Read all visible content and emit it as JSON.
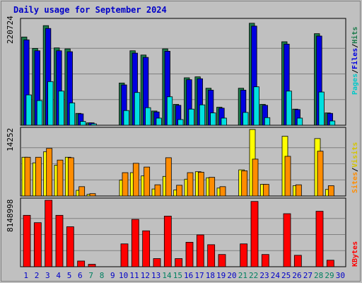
{
  "title": "Daily usage for September 2024",
  "chart_data": [
    {
      "type": "bar",
      "panel": "top",
      "ymax_label": "220724",
      "ylim": [
        0,
        220724
      ],
      "categories": [
        "1",
        "2",
        "3",
        "4",
        "5",
        "6",
        "7",
        "8",
        "9",
        "10",
        "11",
        "12",
        "13",
        "14",
        "15",
        "16",
        "17",
        "18",
        "19",
        "20",
        "21",
        "22",
        "23",
        "24",
        "25",
        "26",
        "27",
        "28",
        "29",
        "30"
      ],
      "series": [
        {
          "name": "Hits",
          "color": "#1a7a4a",
          "values": [
            186000,
            162000,
            210000,
            163000,
            161000,
            25000,
            5000,
            0,
            0,
            89000,
            157000,
            148000,
            30000,
            161000,
            44000,
            100000,
            102000,
            78000,
            38000,
            0,
            78000,
            215000,
            44000,
            0,
            176000,
            34000,
            0,
            193000,
            26000,
            0
          ]
        },
        {
          "name": "Files",
          "color": "#0000e0",
          "values": [
            180000,
            157000,
            204000,
            157000,
            155000,
            24000,
            5000,
            0,
            0,
            85000,
            152000,
            143000,
            28000,
            156000,
            42000,
            96000,
            98000,
            74000,
            36000,
            0,
            74000,
            209000,
            42000,
            0,
            171000,
            33000,
            0,
            188000,
            25000,
            0
          ]
        },
        {
          "name": "Pages",
          "color": "#00e0e0",
          "values": [
            64000,
            52000,
            92000,
            72000,
            47000,
            8000,
            2000,
            0,
            0,
            31000,
            69000,
            37000,
            15000,
            60000,
            12000,
            34000,
            43000,
            26000,
            15000,
            0,
            27000,
            81000,
            16000,
            0,
            72000,
            15000,
            0,
            70000,
            9000,
            0
          ]
        }
      ],
      "right_labels": [
        "Pages",
        "/",
        "Files",
        "/",
        "Hits"
      ]
    },
    {
      "type": "bar",
      "panel": "middle",
      "ymax_label": "14252",
      "ylim": [
        0,
        14252
      ],
      "categories": [
        "1",
        "2",
        "3",
        "4",
        "5",
        "6",
        "7",
        "8",
        "9",
        "10",
        "11",
        "12",
        "13",
        "14",
        "15",
        "16",
        "17",
        "18",
        "19",
        "20",
        "21",
        "22",
        "23",
        "24",
        "25",
        "26",
        "27",
        "28",
        "29",
        "30"
      ],
      "series": [
        {
          "name": "Visits",
          "color": "#ffff00",
          "values": [
            8300,
            7100,
            9500,
            6600,
            8300,
            1200,
            350,
            0,
            0,
            3400,
            5000,
            4300,
            1500,
            4200,
            1300,
            3600,
            5200,
            3900,
            1700,
            0,
            5600,
            14252,
            2500,
            0,
            12800,
            2200,
            0,
            12300,
            1400,
            0
          ]
        },
        {
          "name": "Sites",
          "color": "#ff8c00",
          "values": [
            8300,
            8300,
            10200,
            7700,
            8200,
            2000,
            500,
            0,
            0,
            5000,
            7000,
            6200,
            2400,
            8200,
            2300,
            5000,
            5100,
            4000,
            2000,
            0,
            5400,
            7900,
            2500,
            0,
            8500,
            2400,
            0,
            9600,
            2200,
            0
          ]
        }
      ],
      "right_labels": [
        "Sites",
        "/",
        "Visits"
      ]
    },
    {
      "type": "bar",
      "panel": "bottom",
      "ymax_label": "8148998",
      "ylim": [
        0,
        8148998
      ],
      "categories": [
        "1",
        "2",
        "3",
        "4",
        "5",
        "6",
        "7",
        "8",
        "9",
        "10",
        "11",
        "12",
        "13",
        "14",
        "15",
        "16",
        "17",
        "18",
        "19",
        "20",
        "21",
        "22",
        "23",
        "24",
        "25",
        "26",
        "27",
        "28",
        "29",
        "30"
      ],
      "series": [
        {
          "name": "KBytes",
          "color": "#ff0000",
          "values": [
            6300000,
            5400000,
            8149000,
            6300000,
            4900000,
            700000,
            300000,
            0,
            0,
            2800000,
            5800000,
            4400000,
            1000000,
            6200000,
            1000000,
            3000000,
            3900000,
            2700000,
            1500000,
            0,
            2800000,
            8000000,
            1500000,
            0,
            6500000,
            1400000,
            0,
            6800000,
            800000,
            0
          ]
        }
      ],
      "right_labels": [
        "KBytes"
      ]
    }
  ],
  "x_label_colors": {
    "weekday": "#0000c8",
    "weekend": "#008060"
  },
  "weekend_days": [
    "7",
    "8",
    "14",
    "15",
    "21",
    "22",
    "28",
    "29"
  ],
  "colors": {
    "background": "#c0c0c0",
    "plot_border": "#000000",
    "grid": "#808080"
  }
}
